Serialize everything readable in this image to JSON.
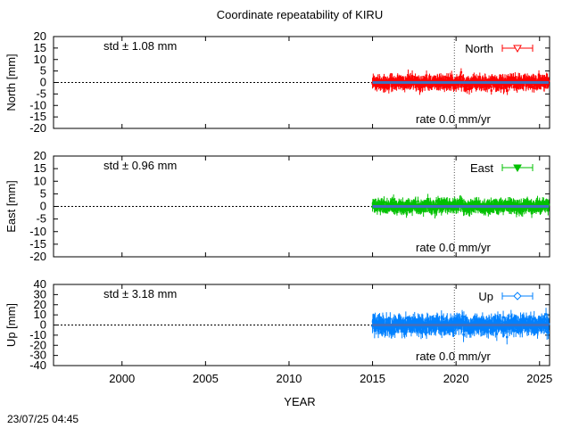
{
  "title": "Coordinate repeatability of KIRU",
  "timestamp": "23/07/25 04:45",
  "xlabel": "YEAR",
  "chart_data": [
    {
      "type": "scatter",
      "ylabel": "North [mm]",
      "ylim": [
        -20,
        20
      ],
      "yticks": [
        20,
        15,
        10,
        5,
        0,
        -5,
        -10,
        -15,
        -20
      ],
      "xlim": [
        1995.9,
        2025.6
      ],
      "std_text": "std ± 1.08 mm",
      "rate_text": "rate  0.0 mm/yr",
      "legend": "North",
      "color": "#ff0000",
      "marker": "triangle-down",
      "data_start": 2015.0,
      "data_end": 2025.55,
      "std": 1.08,
      "rate": 0.0
    },
    {
      "type": "scatter",
      "ylabel": "East [mm]",
      "ylim": [
        -20,
        20
      ],
      "yticks": [
        20,
        15,
        10,
        5,
        0,
        -5,
        -10,
        -15,
        -20
      ],
      "xlim": [
        1995.9,
        2025.6
      ],
      "std_text": "std ± 0.96 mm",
      "rate_text": "rate  0.0 mm/yr",
      "legend": "East",
      "color": "#00c000",
      "marker": "triangle-down-filled",
      "data_start": 2015.0,
      "data_end": 2025.55,
      "std": 0.96,
      "rate": 0.0
    },
    {
      "type": "scatter",
      "ylabel": "Up [mm]",
      "ylim": [
        -40,
        40
      ],
      "yticks": [
        40,
        30,
        20,
        10,
        0,
        -10,
        -20,
        -30,
        -40
      ],
      "xlim": [
        1995.9,
        2025.6
      ],
      "std_text": "std ± 3.18 mm",
      "rate_text": "rate  0.0 mm/yr",
      "legend": "Up",
      "color": "#0080ff",
      "marker": "diamond",
      "data_start": 2015.0,
      "data_end": 2025.55,
      "std": 3.18,
      "rate": 0.0
    }
  ],
  "xticks": [
    2000,
    2005,
    2010,
    2015,
    2020,
    2025
  ],
  "vline_x": 2019.9
}
